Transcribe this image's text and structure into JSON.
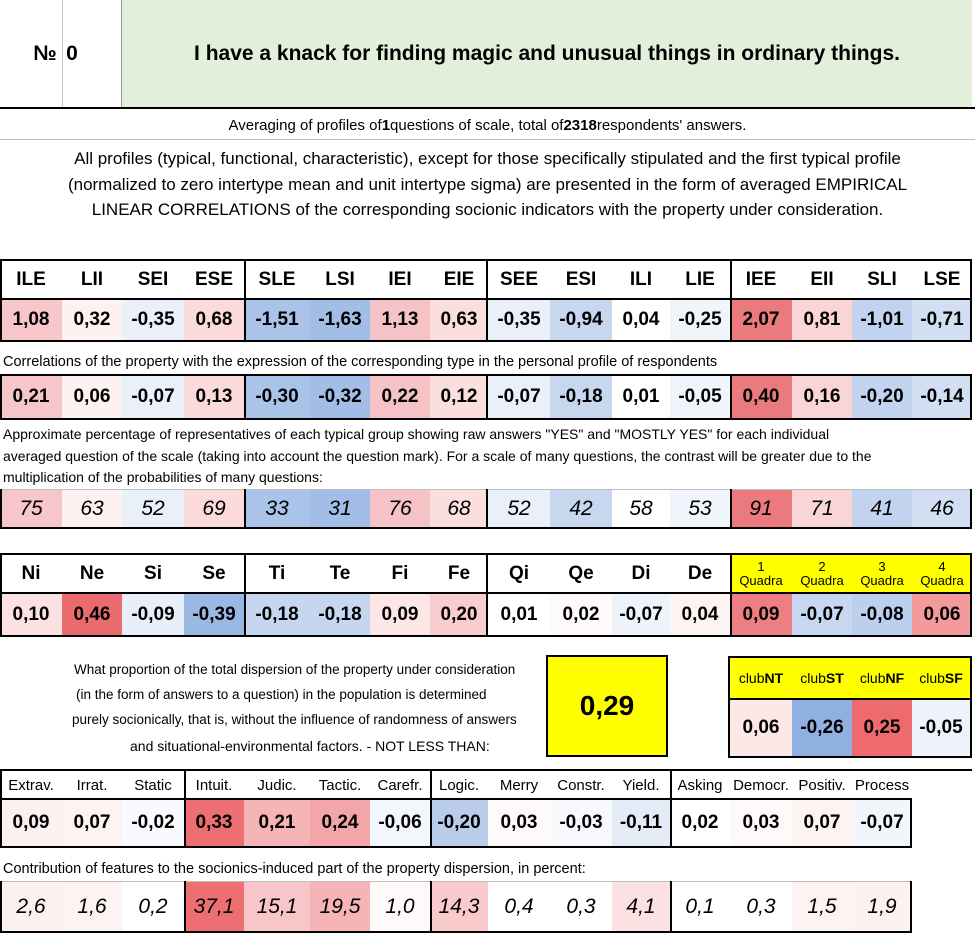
{
  "title": {
    "number_label": "№",
    "number": "0",
    "question": "I have a knack for finding magic and unusual things in ordinary things."
  },
  "summary": {
    "prefix": "Averaging of profiles of ",
    "questions": "1",
    "middle": " questions of scale, total of ",
    "respondents": "2318",
    "suffix": " respondents' answers."
  },
  "description": {
    "line1": "All profiles (typical, functional, characteristic), except for those specifically stipulated and the first typical profile",
    "line2": "(normalized to zero intertype mean and unit intertype sigma) are presented in the form of averaged EMPIRICAL",
    "line3": "LINEAR CORRELATIONS of the corresponding socionic indicators with the property under consideration."
  },
  "types": {
    "headers": [
      "ILE",
      "LII",
      "SEI",
      "ESE",
      "SLE",
      "LSI",
      "IEI",
      "EIE",
      "SEE",
      "ESI",
      "ILI",
      "LIE",
      "IEE",
      "EII",
      "SLI",
      "LSE"
    ],
    "profile": [
      "1,08",
      "0,32",
      "-0,35",
      "0,68",
      "-1,51",
      "-1,63",
      "1,13",
      "0,63",
      "-0,35",
      "-0,94",
      "0,04",
      "-0,25",
      "2,07",
      "0,81",
      "-1,01",
      "-0,71"
    ],
    "profile_colors": [
      "#f6c6c8",
      "#fdf1f1",
      "#eaf0fa",
      "#fadadb",
      "#aac3e8",
      "#a3bee6",
      "#f5c3c5",
      "#fbdede",
      "#eaf0fa",
      "#c8d7f0",
      "#ffffff",
      "#f0f4fb",
      "#ea7a7d",
      "#f9d5d6",
      "#c2d3ef",
      "#d2def2"
    ],
    "corr_caption": "Correlations of the property with the expression of the corresponding type in the personal profile of respondents",
    "corr": [
      "0,21",
      "0,06",
      "-0,07",
      "0,13",
      "-0,30",
      "-0,32",
      "0,22",
      "0,12",
      "-0,07",
      "-0,18",
      "0,01",
      "-0,05",
      "0,40",
      "0,16",
      "-0,20",
      "-0,14"
    ],
    "corr_colors": [
      "#f6c6c8",
      "#fdf1f1",
      "#eaf0fa",
      "#fadadb",
      "#aac3e8",
      "#a3bee6",
      "#f5c3c5",
      "#fbdede",
      "#eaf0fa",
      "#c8d7f0",
      "#ffffff",
      "#f0f4fb",
      "#ea7a7d",
      "#f9d5d6",
      "#c2d3ef",
      "#d2def2"
    ],
    "pct_caption_1": "Approximate percentage of representatives of each typical group showing raw answers \"YES\" and \"MOSTLY YES\" for each individual",
    "pct_caption_2": "averaged question of the scale (taking into account the question mark). For a scale of many questions, the contrast will be greater due to the",
    "pct_caption_3": "multiplication of the probabilities of many questions:",
    "pct": [
      "75",
      "63",
      "52",
      "69",
      "33",
      "31",
      "76",
      "68",
      "52",
      "42",
      "58",
      "53",
      "91",
      "71",
      "41",
      "46"
    ],
    "pct_colors": [
      "#f6c6c8",
      "#fdf1f1",
      "#eaf0fa",
      "#fadadb",
      "#aac3e8",
      "#a3bee6",
      "#f5c3c5",
      "#fbdede",
      "#eaf0fa",
      "#c8d7f0",
      "#ffffff",
      "#f0f4fb",
      "#ea7a7d",
      "#f9d5d6",
      "#c2d3ef",
      "#d2def2"
    ]
  },
  "functions": {
    "headers": [
      "Ni",
      "Ne",
      "Si",
      "Se",
      "Ti",
      "Te",
      "Fi",
      "Fe",
      "Qi",
      "Qe",
      "Di",
      "De"
    ],
    "values": [
      "0,10",
      "0,46",
      "-0,09",
      "-0,39",
      "-0,18",
      "-0,18",
      "0,09",
      "0,20",
      "0,01",
      "0,02",
      "-0,07",
      "0,04"
    ],
    "colors": [
      "#fbe1e2",
      "#ea6b6e",
      "#e9eff9",
      "#9ab8e4",
      "#c6d6f0",
      "#c6d6f0",
      "#fce6e6",
      "#f8cdcf",
      "#ffffff",
      "#fefafa",
      "#eef3fb",
      "#fdf3f3"
    ]
  },
  "quadras": {
    "numbers": [
      "1",
      "2",
      "3",
      "4"
    ],
    "label": "Quadra",
    "values": [
      "0,09",
      "-0,07",
      "-0,08",
      "0,06"
    ],
    "colors": [
      "#ed7f82",
      "#c7d7f0",
      "#bcd0ee",
      "#f29a9c"
    ],
    "header_color": "#ffff00"
  },
  "dispersion": {
    "line1": "What proportion of the total dispersion of the property under consideration",
    "line2": "(in the form of answers to a question) in the population is determined",
    "line3": "purely socionically, that is, without the influence of randomness of answers",
    "line4": "and situational-environmental factors. - NOT LESS THAN:",
    "value": "0,29",
    "value_color": "#ffff00"
  },
  "clubs": {
    "prefix": "club",
    "names": [
      "NT",
      "ST",
      "NF",
      "SF"
    ],
    "values": [
      "0,06",
      "-0,26",
      "0,25",
      "-0,05"
    ],
    "colors": [
      "#fde8e8",
      "#8fb0e1",
      "#ed6b6e",
      "#eef3fb"
    ],
    "header_color": "#ffff00"
  },
  "features": {
    "headers": [
      "Extrav.",
      "Irrat.",
      "Static",
      "Intuit.",
      "Judic.",
      "Tactic.",
      "Carefr.",
      "Logic.",
      "Merry",
      "Constr.",
      "Yield.",
      "Asking",
      "Democr.",
      "Positiv.",
      "Process"
    ],
    "values": [
      "0,09",
      "0,07",
      "-0,02",
      "0,33",
      "0,21",
      "0,24",
      "-0,06",
      "-0,20",
      "0,03",
      "-0,03",
      "-0,11",
      "0,02",
      "0,03",
      "0,07",
      "-0,07"
    ],
    "colors": [
      "#fdf0f0",
      "#fdf3f3",
      "#f8fafd",
      "#ee6f72",
      "#f5b4b6",
      "#f3a6a9",
      "#f3f6fc",
      "#b9cdeb",
      "#fefafa",
      "#f7f9fd",
      "#e3ebf7",
      "#ffffff",
      "#fefafa",
      "#fdf3f3",
      "#f2f6fc"
    ],
    "contrib_caption": "Contribution of features to the sociоnics-induced part of the property dispersion, in percent:",
    "contrib": [
      "2,6",
      "1,6",
      "0,2",
      "37,1",
      "15,1",
      "19,5",
      "1,0",
      "14,3",
      "0,4",
      "0,3",
      "4,1",
      "0,1",
      "0,3",
      "1,5",
      "1,9"
    ],
    "contrib_colors": [
      "#fdf0f0",
      "#fdf3f3",
      "#ffffff",
      "#ee6f72",
      "#f8c6c8",
      "#f6b4b6",
      "#fefafa",
      "#f9cacc",
      "#ffffff",
      "#ffffff",
      "#fbe1e2",
      "#ffffff",
      "#ffffff",
      "#fdf3f3",
      "#fdf1f1"
    ]
  }
}
